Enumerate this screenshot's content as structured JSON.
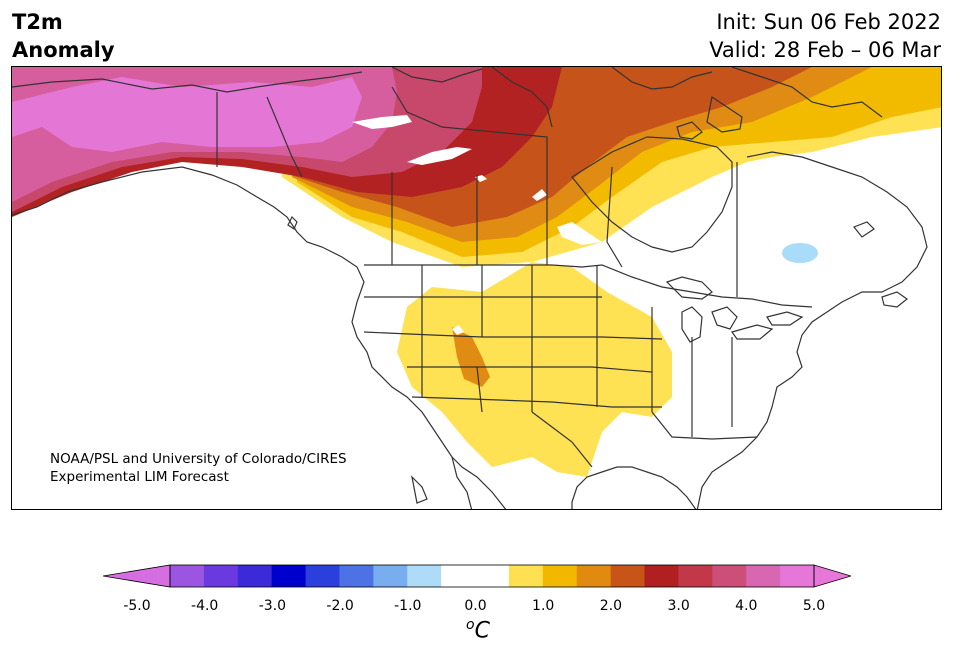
{
  "header": {
    "title_line1": "T2m",
    "title_line2": "Anomaly",
    "init": "Init: Sun 06 Feb 2022",
    "valid": "Valid: 28 Feb – 06 Mar"
  },
  "credit": {
    "line1": "NOAA/PSL and University of Colorado/CIRES",
    "line2": "Experimental LIM Forecast"
  },
  "colorbar": {
    "ticks": [
      "-5.0",
      "-4.0",
      "-3.0",
      "-2.0",
      "-1.0",
      "0.0",
      "1.0",
      "2.0",
      "3.0",
      "4.0",
      "5.0"
    ],
    "unit_sup": "o",
    "unit": "C",
    "colors": [
      "#9b55e0",
      "#6a3ae0",
      "#3a2ad8",
      "#0000cc",
      "#2a3fdc",
      "#4c72e6",
      "#78aef0",
      "#aedcf8",
      "#ffffff",
      "#ffffff",
      "#ffe050",
      "#f2b800",
      "#e08b10",
      "#c85418",
      "#b02020",
      "#c23848",
      "#cc4f7a",
      "#d866b0",
      "#e676d8"
    ],
    "under_color": "#d56ee0",
    "over_color": "#e676d8"
  },
  "map": {
    "colors": {
      "light_yellow": "#ffe154",
      "yellow": "#f2bb00",
      "dark_yellow": "#e08c14",
      "orange": "#c6541a",
      "red": "#b32222",
      "dark_pink": "#c8486c",
      "pink": "#d65e9e",
      "magenta": "#e476d6",
      "light_blue": "#a8dcf8",
      "land_line": "#333333"
    }
  }
}
